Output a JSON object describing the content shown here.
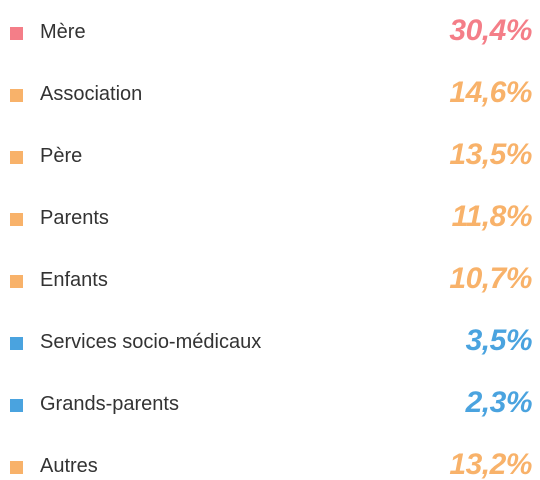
{
  "items": [
    {
      "label": "Mère",
      "value": "30,4%",
      "color": "#f47e88"
    },
    {
      "label": "Association",
      "value": "14,6%",
      "color": "#f8b26a"
    },
    {
      "label": "Père",
      "value": "13,5%",
      "color": "#f8b26a"
    },
    {
      "label": "Parents",
      "value": "11,8%",
      "color": "#f8b26a"
    },
    {
      "label": "Enfants",
      "value": "10,7%",
      "color": "#f8b26a"
    },
    {
      "label": "Services socio-médicaux",
      "value": "3,5%",
      "color": "#4aa3df"
    },
    {
      "label": "Grands-parents",
      "value": "2,3%",
      "color": "#4aa3df"
    },
    {
      "label": "Autres",
      "value": "13,2%",
      "color": "#f8b26a"
    }
  ]
}
